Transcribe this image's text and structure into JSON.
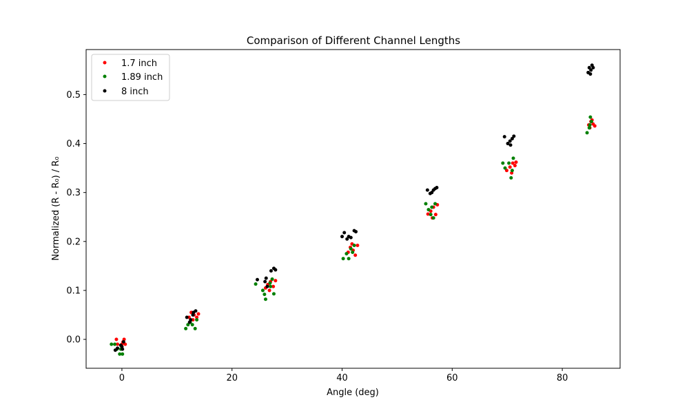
{
  "chart_data": {
    "type": "scatter",
    "title": "Comparison of Different Channel Lengths",
    "xlabel": "Angle (deg)",
    "ylabel": "Normalized (R - R₀) / R₀",
    "xlim": [
      -6.5,
      90.5
    ],
    "ylim": [
      -0.059,
      0.592
    ],
    "xticks": [
      0,
      20,
      40,
      60,
      80
    ],
    "yticks": [
      0.0,
      0.1,
      0.2,
      0.3,
      0.4,
      0.5
    ],
    "xtick_labels": [
      "0",
      "20",
      "40",
      "60",
      "80"
    ],
    "ytick_labels": [
      "0.0",
      "0.1",
      "0.2",
      "0.3",
      "0.4",
      "0.5"
    ],
    "grid": false,
    "legend_position": "top-left",
    "series": [
      {
        "name": "1.7 inch",
        "color": "#ff0000",
        "points": [
          [
            -1.0,
            0.0
          ],
          [
            -0.8,
            -0.01
          ],
          [
            0.0,
            -0.01
          ],
          [
            0.4,
            0.0
          ],
          [
            0.6,
            -0.01
          ],
          [
            0.2,
            -0.005
          ],
          [
            12.2,
            0.045
          ],
          [
            12.6,
            0.055
          ],
          [
            13.1,
            0.05
          ],
          [
            13.6,
            0.045
          ],
          [
            13.9,
            0.052
          ],
          [
            12.9,
            0.04
          ],
          [
            26.1,
            0.105
          ],
          [
            26.5,
            0.112
          ],
          [
            27.0,
            0.118
          ],
          [
            27.5,
            0.108
          ],
          [
            27.9,
            0.12
          ],
          [
            26.8,
            0.1
          ],
          [
            41.1,
            0.178
          ],
          [
            41.5,
            0.188
          ],
          [
            42.0,
            0.182
          ],
          [
            42.4,
            0.172
          ],
          [
            42.8,
            0.192
          ],
          [
            41.8,
            0.195
          ],
          [
            55.6,
            0.256
          ],
          [
            56.1,
            0.262
          ],
          [
            56.6,
            0.27
          ],
          [
            57.0,
            0.255
          ],
          [
            57.3,
            0.275
          ],
          [
            56.4,
            0.248
          ],
          [
            69.9,
            0.345
          ],
          [
            70.5,
            0.352
          ],
          [
            71.0,
            0.36
          ],
          [
            71.4,
            0.355
          ],
          [
            71.6,
            0.362
          ],
          [
            70.8,
            0.34
          ],
          [
            84.8,
            0.438
          ],
          [
            85.2,
            0.445
          ],
          [
            85.6,
            0.44
          ],
          [
            85.9,
            0.436
          ],
          [
            85.4,
            0.448
          ],
          [
            85.0,
            0.432
          ]
        ]
      },
      {
        "name": "1.89 inch",
        "color": "#008000",
        "points": [
          [
            -1.9,
            -0.01
          ],
          [
            -1.3,
            -0.01
          ],
          [
            -0.9,
            -0.02
          ],
          [
            -0.2,
            -0.02
          ],
          [
            0.1,
            -0.03
          ],
          [
            -0.4,
            -0.03
          ],
          [
            11.6,
            0.022
          ],
          [
            12.0,
            0.03
          ],
          [
            12.4,
            0.035
          ],
          [
            12.8,
            0.03
          ],
          [
            13.3,
            0.022
          ],
          [
            13.6,
            0.04
          ],
          [
            24.3,
            0.113
          ],
          [
            25.6,
            0.1
          ],
          [
            25.9,
            0.092
          ],
          [
            26.1,
            0.082
          ],
          [
            26.9,
            0.115
          ],
          [
            27.3,
            0.123
          ],
          [
            27.6,
            0.093
          ],
          [
            27.0,
            0.108
          ],
          [
            40.2,
            0.165
          ],
          [
            40.8,
            0.175
          ],
          [
            41.2,
            0.165
          ],
          [
            41.6,
            0.185
          ],
          [
            42.2,
            0.192
          ],
          [
            41.9,
            0.178
          ],
          [
            55.2,
            0.277
          ],
          [
            55.7,
            0.265
          ],
          [
            56.1,
            0.255
          ],
          [
            56.6,
            0.248
          ],
          [
            56.9,
            0.277
          ],
          [
            56.3,
            0.27
          ],
          [
            69.2,
            0.36
          ],
          [
            69.6,
            0.35
          ],
          [
            70.3,
            0.36
          ],
          [
            70.7,
            0.33
          ],
          [
            71.1,
            0.37
          ],
          [
            70.9,
            0.345
          ],
          [
            84.5,
            0.422
          ],
          [
            84.9,
            0.432
          ],
          [
            85.1,
            0.454
          ],
          [
            85.3,
            0.445
          ],
          [
            85.0,
            0.438
          ]
        ]
      },
      {
        "name": "8 inch",
        "color": "#000000",
        "points": [
          [
            -1.2,
            -0.022
          ],
          [
            -0.8,
            -0.018
          ],
          [
            -0.2,
            -0.012
          ],
          [
            0.1,
            -0.02
          ],
          [
            0.3,
            -0.005
          ],
          [
            0.0,
            -0.015
          ],
          [
            11.8,
            0.045
          ],
          [
            12.3,
            0.035
          ],
          [
            12.5,
            0.04
          ],
          [
            12.9,
            0.05
          ],
          [
            13.4,
            0.058
          ],
          [
            13.0,
            0.055
          ],
          [
            24.6,
            0.122
          ],
          [
            26.0,
            0.118
          ],
          [
            26.2,
            0.125
          ],
          [
            26.4,
            0.108
          ],
          [
            27.1,
            0.14
          ],
          [
            27.6,
            0.145
          ],
          [
            27.9,
            0.142
          ],
          [
            40.0,
            0.21
          ],
          [
            40.4,
            0.218
          ],
          [
            40.9,
            0.205
          ],
          [
            41.2,
            0.21
          ],
          [
            41.6,
            0.208
          ],
          [
            42.2,
            0.222
          ],
          [
            42.5,
            0.22
          ],
          [
            55.5,
            0.305
          ],
          [
            56.0,
            0.298
          ],
          [
            56.3,
            0.3
          ],
          [
            56.9,
            0.308
          ],
          [
            57.2,
            0.31
          ],
          [
            56.6,
            0.305
          ],
          [
            69.5,
            0.414
          ],
          [
            70.1,
            0.4
          ],
          [
            70.5,
            0.405
          ],
          [
            70.9,
            0.41
          ],
          [
            71.2,
            0.415
          ],
          [
            70.6,
            0.397
          ],
          [
            84.7,
            0.545
          ],
          [
            84.9,
            0.555
          ],
          [
            85.2,
            0.55
          ],
          [
            85.4,
            0.56
          ],
          [
            85.6,
            0.555
          ],
          [
            85.1,
            0.542
          ]
        ]
      }
    ]
  }
}
